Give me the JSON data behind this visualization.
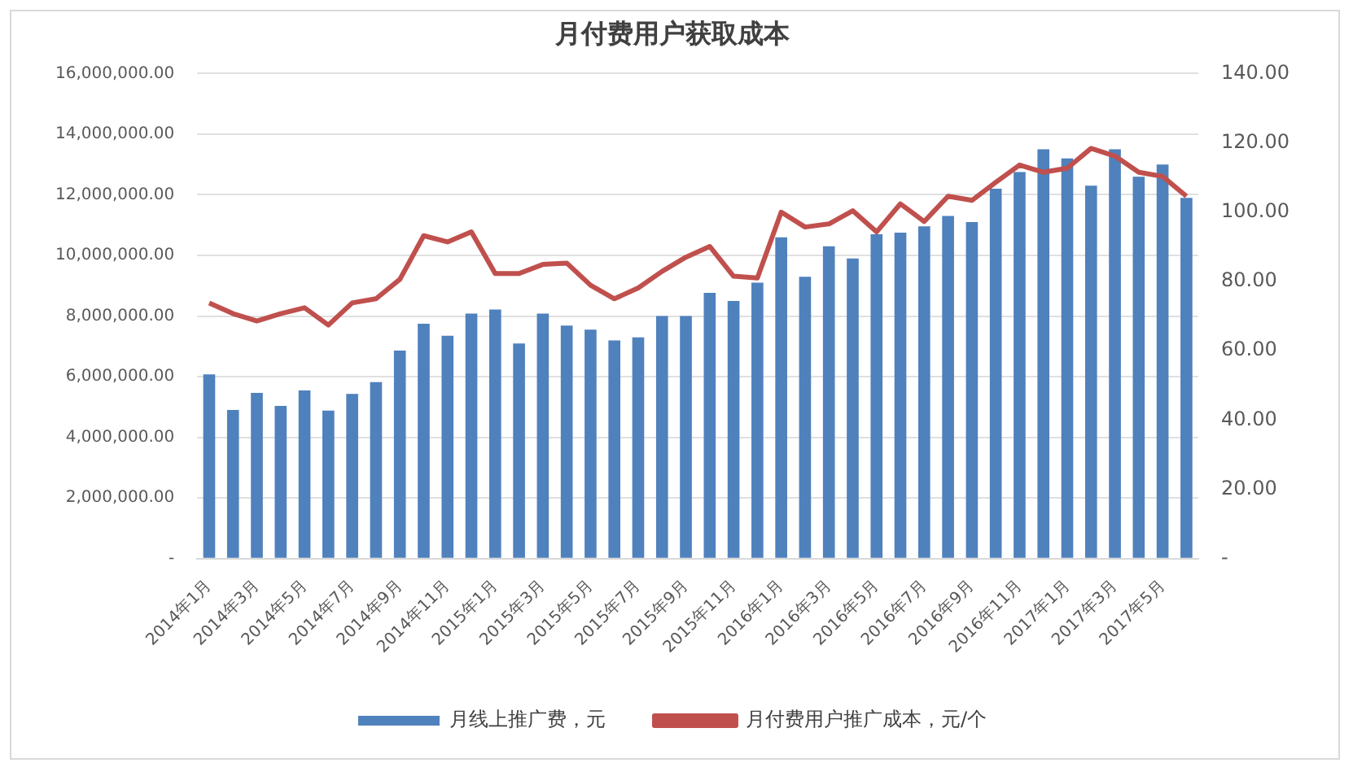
{
  "chart_data": {
    "type": "bar",
    "title": "月付费用户获取成本",
    "categories": [
      "2014年1月",
      null,
      "2014年3月",
      null,
      "2014年5月",
      null,
      "2014年7月",
      null,
      "2014年9月",
      null,
      "2014年11月",
      null,
      "2015年1月",
      null,
      "2015年3月",
      null,
      "2015年5月",
      null,
      "2015年7月",
      null,
      "2015年9月",
      null,
      "2015年11月",
      null,
      "2016年1月",
      null,
      "2016年3月",
      null,
      "2016年5月",
      null,
      "2016年7月",
      null,
      "2016年9月",
      null,
      "2016年11月",
      null,
      "2017年1月",
      null,
      "2017年3月",
      null,
      "2017年5月",
      null
    ],
    "series": [
      {
        "name": "月线上推广费，元",
        "color": "#4f81bd",
        "values": [
          6080000,
          4900000,
          5470000,
          5040000,
          5550000,
          4880000,
          5430000,
          5820000,
          6860000,
          7750000,
          7350000,
          8080000,
          8220000,
          7100000,
          8080000,
          7690000,
          7550000,
          7200000,
          7300000,
          8000000,
          8000000,
          8770000,
          8500000,
          9100000,
          10600000,
          9300000,
          10300000,
          9900000,
          10700000,
          10750000,
          10960000,
          11300000,
          11100000,
          12200000,
          12750000,
          13500000,
          13200000,
          12300000,
          13500000,
          12600000,
          13000000,
          11900000
        ]
      },
      {
        "name": "月付费用户推广成本，元/个",
        "type": "line",
        "axis": "y2",
        "color": "#c0504d",
        "values": [
          73.8,
          70.7,
          68.6,
          70.7,
          72.4,
          67.4,
          73.8,
          75,
          80.6,
          93.2,
          91.4,
          94.3,
          82.3,
          82.3,
          84.9,
          85.3,
          78.9,
          75,
          78.1,
          82.9,
          87,
          90.1,
          81.5,
          81,
          100,
          95.7,
          96.6,
          100.4,
          94.3,
          102.4,
          97.3,
          104.6,
          103.4,
          108.6,
          113.6,
          111.5,
          112.7,
          118.4,
          116.2,
          111.5,
          110.3,
          104.6
        ]
      }
    ],
    "ylim": [
      0,
      16000000
    ],
    "yticks": [
      {
        "value": 0,
        "label": "-"
      },
      {
        "value": 2000000,
        "label": "2,000,000.00"
      },
      {
        "value": 4000000,
        "label": "4,000,000.00"
      },
      {
        "value": 6000000,
        "label": "6,000,000.00"
      },
      {
        "value": 8000000,
        "label": "8,000,000.00"
      },
      {
        "value": 10000000,
        "label": "10,000,000.00"
      },
      {
        "value": 12000000,
        "label": "12,000,000.00"
      },
      {
        "value": 14000000,
        "label": "14,000,000.00"
      },
      {
        "value": 16000000,
        "label": "16,000,000.00"
      }
    ],
    "y2lim": [
      0,
      140
    ],
    "y2ticks": [
      {
        "value": 0,
        "label": "-"
      },
      {
        "value": 20,
        "label": "20.00"
      },
      {
        "value": 40,
        "label": "40.00"
      },
      {
        "value": 60,
        "label": "60.00"
      },
      {
        "value": 80,
        "label": "80.00"
      },
      {
        "value": 100,
        "label": "100.00"
      },
      {
        "value": 120,
        "label": "120.00"
      },
      {
        "value": 140,
        "label": "140.00"
      }
    ],
    "grid": "y",
    "legend": "bottom",
    "marker": "none",
    "line_style": "solid"
  }
}
